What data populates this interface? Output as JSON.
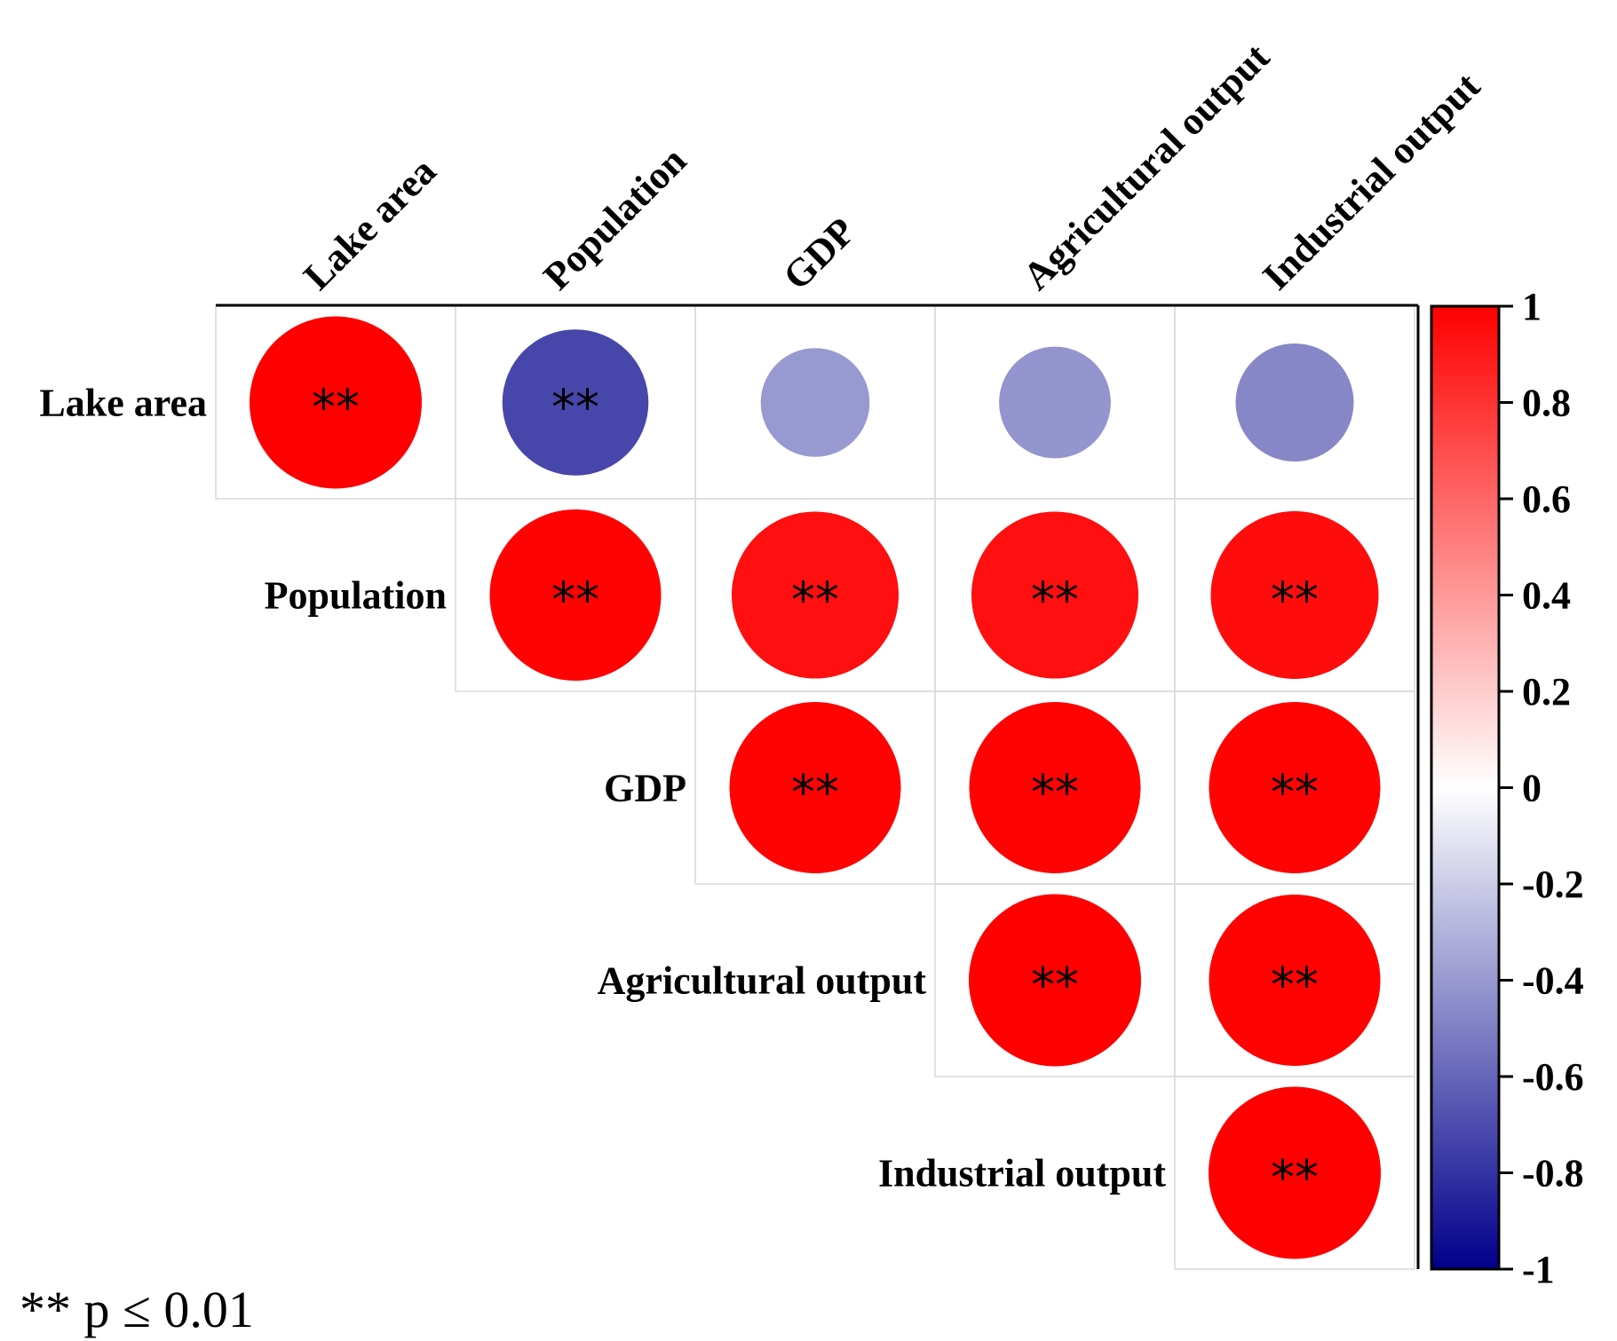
{
  "chart_data": {
    "type": "heatmap",
    "subtype": "correlation-matrix-upper-triangle",
    "variables": [
      "Lake area",
      "Population",
      "GDP",
      "Agricultural output",
      "Industrial output"
    ],
    "matrix": [
      [
        1.0,
        -0.72,
        -0.4,
        -0.42,
        -0.47
      ],
      [
        null,
        0.99,
        0.94,
        0.94,
        0.95
      ],
      [
        null,
        null,
        0.99,
        0.99,
        0.99
      ],
      [
        null,
        null,
        null,
        1.0,
        0.99
      ],
      [
        null,
        null,
        null,
        null,
        1.0
      ]
    ],
    "significance": [
      [
        "**",
        "**",
        "",
        "",
        ""
      ],
      [
        null,
        "**",
        "**",
        "**",
        "**"
      ],
      [
        null,
        null,
        "**",
        "**",
        "**"
      ],
      [
        null,
        null,
        null,
        "**",
        "**"
      ],
      [
        null,
        null,
        null,
        null,
        "**"
      ]
    ],
    "colorbar": {
      "range": [
        -1,
        1
      ],
      "ticks": [
        "1",
        "0.8",
        "0.6",
        "0.4",
        "0.2",
        "0",
        "-0.2",
        "-0.4",
        "-0.6",
        "-0.8",
        "-1"
      ],
      "colors": {
        "low": "#00008b",
        "mid": "#ffffff",
        "high": "#ff0000"
      }
    },
    "footnote": "** p ≤ 0.01"
  }
}
